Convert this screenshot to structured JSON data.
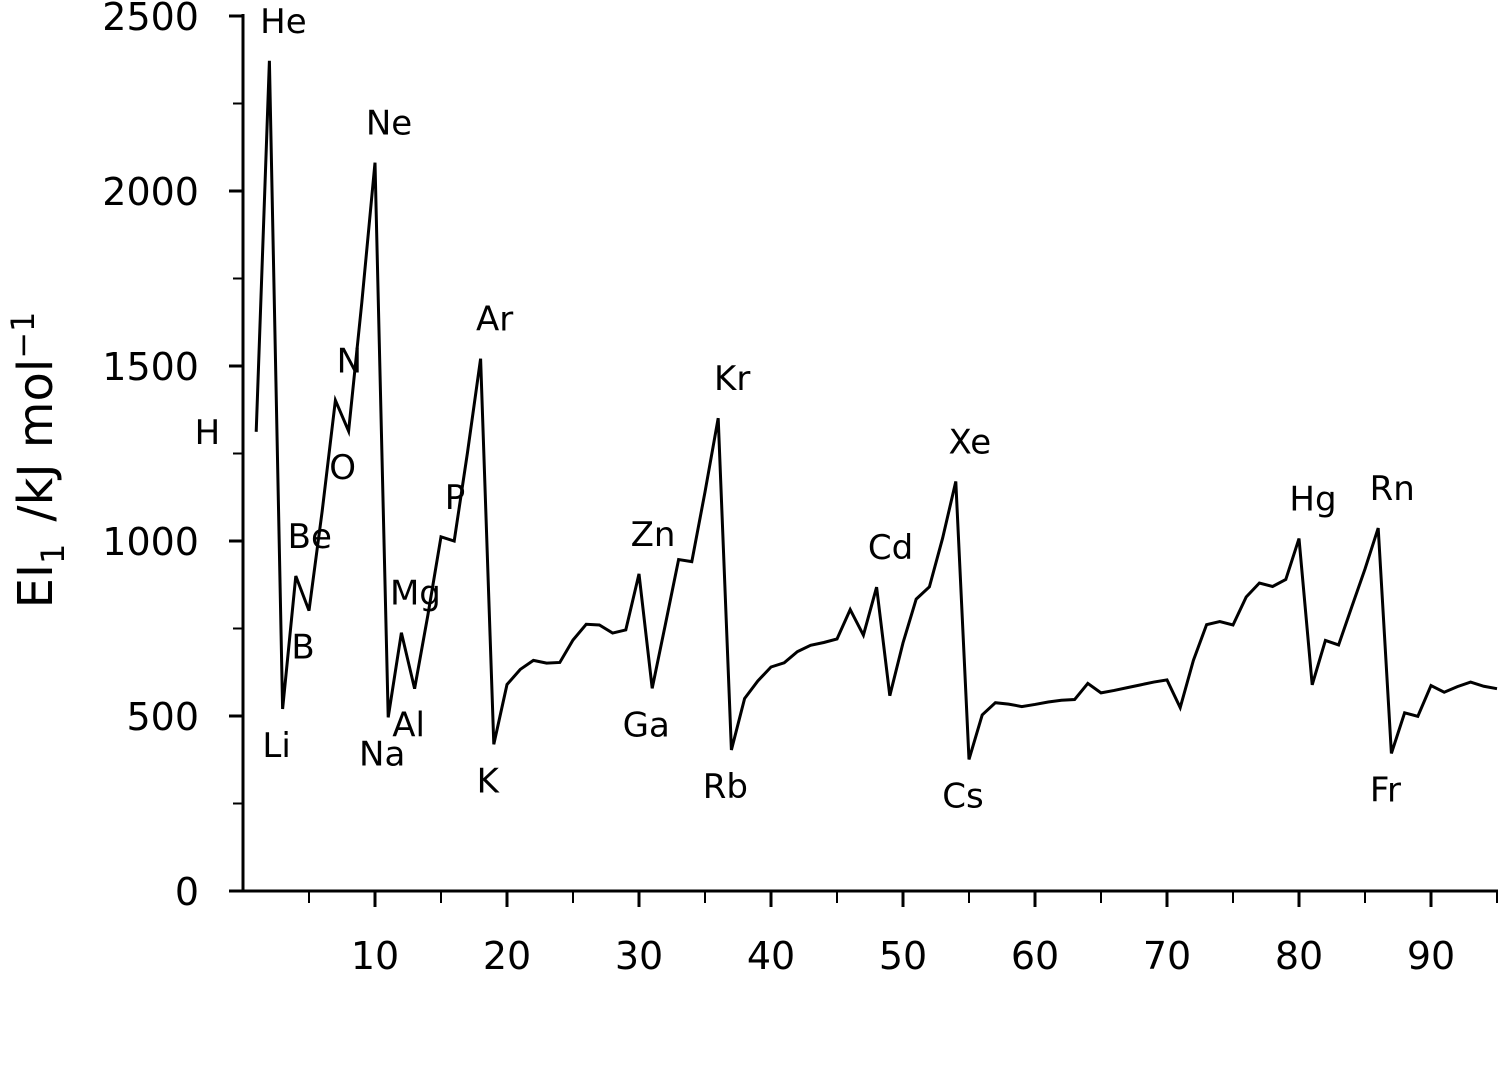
{
  "chart_data": {
    "type": "line",
    "y_label": {
      "main": "EI",
      "sub": "1",
      "unit": "/kJ mol",
      "sup": "−1"
    },
    "x": [
      1,
      2,
      3,
      4,
      5,
      6,
      7,
      8,
      9,
      10,
      11,
      12,
      13,
      14,
      15,
      16,
      17,
      18,
      19,
      20,
      21,
      22,
      23,
      24,
      25,
      26,
      27,
      28,
      29,
      30,
      31,
      32,
      33,
      34,
      35,
      36,
      37,
      38,
      39,
      40,
      41,
      42,
      43,
      44,
      45,
      46,
      47,
      48,
      49,
      50,
      51,
      52,
      53,
      54,
      55,
      56,
      57,
      58,
      59,
      60,
      61,
      62,
      63,
      64,
      65,
      66,
      67,
      68,
      69,
      70,
      71,
      72,
      73,
      74,
      75,
      76,
      77,
      78,
      79,
      80,
      81,
      82,
      83,
      84,
      85,
      86,
      87,
      88,
      89,
      90,
      91,
      92,
      93,
      94,
      95
    ],
    "values": [
      1312,
      2372,
      520,
      900,
      801,
      1086,
      1402,
      1314,
      1681,
      2081,
      496,
      738,
      578,
      787,
      1012,
      1000,
      1251,
      1521,
      419,
      590,
      633,
      659,
      651,
      653,
      717,
      762,
      760,
      737,
      746,
      906,
      579,
      762,
      947,
      941,
      1140,
      1351,
      403,
      550,
      600,
      640,
      652,
      684,
      702,
      710,
      720,
      804,
      731,
      868,
      558,
      709,
      834,
      869,
      1008,
      1170,
      376,
      503,
      538,
      534,
      527,
      533,
      540,
      545,
      547,
      593,
      566,
      573,
      581,
      589,
      597,
      603,
      524,
      659,
      761,
      770,
      760,
      840,
      880,
      870,
      890,
      1007,
      589,
      716,
      703,
      812,
      920,
      1037,
      393,
      509,
      499,
      587,
      568,
      584,
      597,
      585,
      578
    ],
    "color": "#000000",
    "xlim": [
      0,
      95
    ],
    "ylim": [
      0,
      2500
    ],
    "xticks": [
      10,
      20,
      30,
      40,
      50,
      60,
      70,
      80,
      90
    ],
    "xminorticks": [
      5,
      15,
      25,
      35,
      45,
      55,
      65,
      75,
      85,
      95
    ],
    "yticks": [
      0,
      500,
      1000,
      1500,
      2000,
      2500
    ],
    "yminorticks": [
      250,
      750,
      1250,
      1750,
      2250
    ],
    "annotations": [
      {
        "label": "H",
        "x": 1
      },
      {
        "label": "He",
        "x": 2
      },
      {
        "label": "Li",
        "x": 3
      },
      {
        "label": "Be",
        "x": 4
      },
      {
        "label": "B",
        "x": 5
      },
      {
        "label": "N",
        "x": 7
      },
      {
        "label": "O",
        "x": 8
      },
      {
        "label": "Ne",
        "x": 10
      },
      {
        "label": "Na",
        "x": 11
      },
      {
        "label": "Mg",
        "x": 12
      },
      {
        "label": "Al",
        "x": 13
      },
      {
        "label": "P",
        "x": 15
      },
      {
        "label": "Ar",
        "x": 18
      },
      {
        "label": "K",
        "x": 19
      },
      {
        "label": "Zn",
        "x": 30
      },
      {
        "label": "Ga",
        "x": 31
      },
      {
        "label": "Kr",
        "x": 36
      },
      {
        "label": "Rb",
        "x": 37
      },
      {
        "label": "Cd",
        "x": 48
      },
      {
        "label": "Xe",
        "x": 54
      },
      {
        "label": "Cs",
        "x": 55
      },
      {
        "label": "Hg",
        "x": 80
      },
      {
        "label": "Rn",
        "x": 86
      },
      {
        "label": "Fr",
        "x": 87
      }
    ]
  }
}
